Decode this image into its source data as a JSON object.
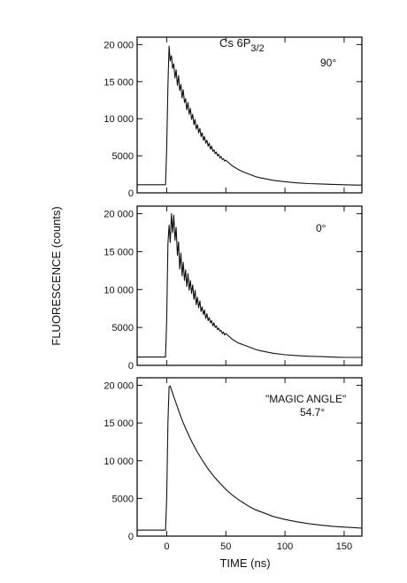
{
  "figure": {
    "ylabel": "FLUORESCENCE  (counts)",
    "xlabel": "TIME  (ns)"
  },
  "chart_data": [
    {
      "type": "line",
      "panel": "top",
      "annotation_main": "Cs  6P",
      "annotation_sub": "3/2",
      "annotation_angle": "90°",
      "xlim": [
        -25,
        165
      ],
      "ylim": [
        0,
        21000
      ],
      "y_ticks": [
        0,
        5000,
        10000,
        15000,
        20000
      ],
      "y_tick_labels": [
        "0",
        "5000",
        "10 000",
        "15 000",
        "20 000"
      ],
      "x_ticks": [
        0,
        50,
        100,
        150
      ],
      "series": [
        {
          "x": [
            -25,
            -1,
            0,
            1,
            2,
            3,
            4,
            5,
            6,
            7,
            8,
            9,
            10,
            11,
            12,
            13,
            14,
            15,
            16,
            17,
            18,
            19,
            20,
            21,
            22,
            23,
            24,
            25,
            26,
            27,
            28,
            29,
            30,
            31,
            32,
            33,
            34,
            35,
            36,
            37,
            38,
            39,
            40,
            41,
            42,
            43,
            44,
            45,
            46,
            47,
            48,
            49,
            50,
            55,
            60,
            65,
            70,
            75,
            80,
            90,
            100,
            110,
            120,
            130,
            140,
            150,
            160,
            165
          ],
          "y": [
            1100,
            1100,
            6000,
            14500,
            19800,
            17800,
            18500,
            16800,
            17400,
            15500,
            16600,
            14500,
            15800,
            13800,
            14600,
            12800,
            13900,
            12200,
            12700,
            11200,
            12200,
            10600,
            11400,
            9900,
            10600,
            9200,
            9900,
            8600,
            9200,
            8100,
            8700,
            7600,
            8100,
            7100,
            7600,
            6700,
            7100,
            6300,
            6700,
            5900,
            6300,
            5600,
            5800,
            5300,
            5500,
            5000,
            5200,
            4700,
            4900,
            4500,
            4600,
            4300,
            4400,
            3700,
            3200,
            2800,
            2500,
            2200,
            2000,
            1700,
            1500,
            1350,
            1250,
            1200,
            1150,
            1100,
            1050,
            1050
          ]
        }
      ]
    },
    {
      "type": "line",
      "panel": "middle",
      "annotation_angle": "0°",
      "xlim": [
        -25,
        165
      ],
      "ylim": [
        0,
        21000
      ],
      "y_ticks": [
        0,
        5000,
        10000,
        15000,
        20000
      ],
      "y_tick_labels": [
        "0",
        "5000",
        "10 000",
        "15 000",
        "20 000"
      ],
      "x_ticks": [
        0,
        50,
        100,
        150
      ],
      "series": [
        {
          "x": [
            -25,
            -1,
            0,
            1,
            2,
            3,
            4,
            5,
            6,
            7,
            8,
            9,
            10,
            11,
            12,
            13,
            14,
            15,
            16,
            17,
            18,
            19,
            20,
            21,
            22,
            23,
            24,
            25,
            26,
            27,
            28,
            29,
            30,
            31,
            32,
            33,
            34,
            35,
            36,
            37,
            38,
            39,
            40,
            41,
            42,
            43,
            44,
            45,
            46,
            47,
            48,
            49,
            50,
            55,
            60,
            65,
            70,
            75,
            80,
            90,
            100,
            110,
            120,
            130,
            140,
            150,
            160,
            165
          ],
          "y": [
            1100,
            1100,
            6000,
            16000,
            18500,
            16200,
            20000,
            17500,
            19800,
            16500,
            18200,
            14500,
            16300,
            12700,
            14800,
            11800,
            13600,
            11200,
            12600,
            10400,
            12100,
            9900,
            11200,
            9500,
            10600,
            8700,
            9900,
            8000,
            9000,
            7600,
            8500,
            7100,
            7700,
            6700,
            7300,
            6200,
            6800,
            5900,
            6300,
            5600,
            5900,
            5200,
            5600,
            5000,
            5200,
            4700,
            4900,
            4500,
            4600,
            4200,
            4400,
            4000,
            4200,
            3500,
            3000,
            2700,
            2400,
            2100,
            1900,
            1600,
            1400,
            1300,
            1200,
            1150,
            1100,
            1050,
            1050,
            1050
          ]
        }
      ]
    },
    {
      "type": "line",
      "panel": "bottom",
      "annotation_main": "\"MAGIC ANGLE\"",
      "annotation_angle": "54.7°",
      "xlim": [
        -25,
        165
      ],
      "ylim": [
        0,
        21000
      ],
      "y_ticks": [
        0,
        5000,
        10000,
        15000,
        20000
      ],
      "y_tick_labels": [
        "0",
        "5000",
        "10 000",
        "15 000",
        "20 000"
      ],
      "x_ticks": [
        0,
        50,
        100,
        150
      ],
      "x_tick_labels": [
        "0",
        "50",
        "100",
        "150"
      ],
      "series": [
        {
          "x": [
            -25,
            -1,
            0,
            1,
            2,
            3,
            4,
            6,
            8,
            10,
            12,
            14,
            16,
            18,
            20,
            22,
            24,
            26,
            28,
            30,
            35,
            40,
            45,
            50,
            55,
            60,
            65,
            70,
            75,
            80,
            90,
            100,
            110,
            120,
            130,
            140,
            150,
            160,
            165
          ],
          "y": [
            800,
            800,
            5000,
            15000,
            19800,
            19900,
            19400,
            18500,
            17600,
            16700,
            15800,
            15000,
            14300,
            13600,
            12900,
            12300,
            11700,
            11100,
            10600,
            10100,
            8900,
            7900,
            7000,
            6200,
            5500,
            4900,
            4400,
            3900,
            3500,
            3200,
            2600,
            2200,
            1900,
            1650,
            1450,
            1300,
            1200,
            1100,
            1050
          ]
        }
      ]
    }
  ]
}
